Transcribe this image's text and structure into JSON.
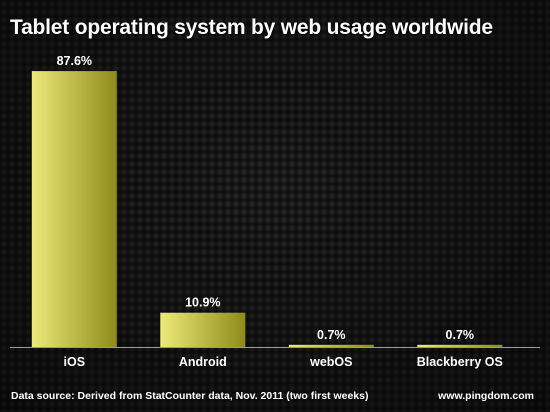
{
  "colors": {
    "background": "#1a1a1a",
    "bar_light": "#ecea7a",
    "bar_dark": "#8f8b1a",
    "text": "#ffffff",
    "axis": "#9a9a9a"
  },
  "footer": {
    "source": "Data source: Derived from StatCounter data, Nov. 2011 (two first weeks)",
    "credit": "www.pingdom.com"
  },
  "chart_data": {
    "type": "bar",
    "title": "Tablet operating system by web usage worldwide",
    "categories": [
      "iOS",
      "Android",
      "webOS",
      "Blackberry OS"
    ],
    "values": [
      87.6,
      10.9,
      0.7,
      0.7
    ],
    "data_labels": [
      "87.6%",
      "10.9%",
      "0.7%",
      "0.7%"
    ],
    "ylim": [
      0,
      100
    ],
    "grid": false,
    "legend": "none"
  }
}
